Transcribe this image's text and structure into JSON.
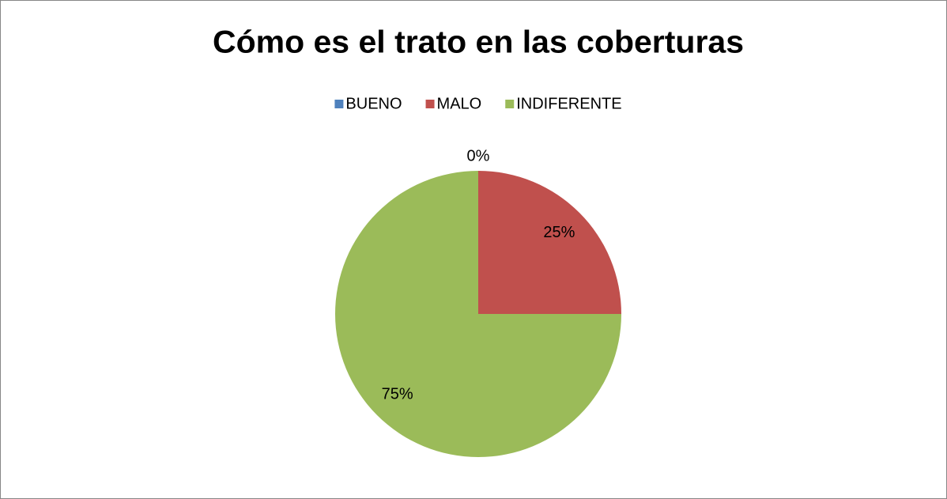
{
  "chart_data": {
    "type": "pie",
    "title": "Cómo es el trato en las coberturas",
    "categories": [
      "BUENO",
      "MALO",
      "INDIFERENTE"
    ],
    "values": [
      0,
      25,
      75
    ],
    "value_labels": [
      "0%",
      "25%",
      "75%"
    ],
    "colors": [
      "#4f81bd",
      "#c0504d",
      "#9bbb59"
    ],
    "legend": "top"
  }
}
